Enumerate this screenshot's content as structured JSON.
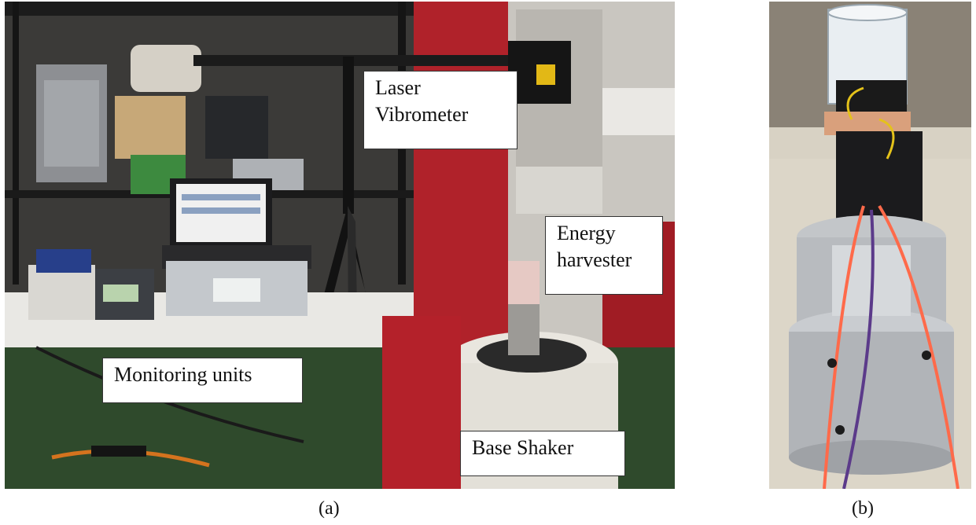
{
  "panels": [
    {
      "id": "a",
      "caption": "(a)",
      "labels": {
        "laser": "Laser\nVibrometer",
        "energy": "Energy\nharvester",
        "monitor": "Monitoring units",
        "shaker": "Base Shaker"
      }
    },
    {
      "id": "b",
      "caption": "(b)"
    }
  ]
}
